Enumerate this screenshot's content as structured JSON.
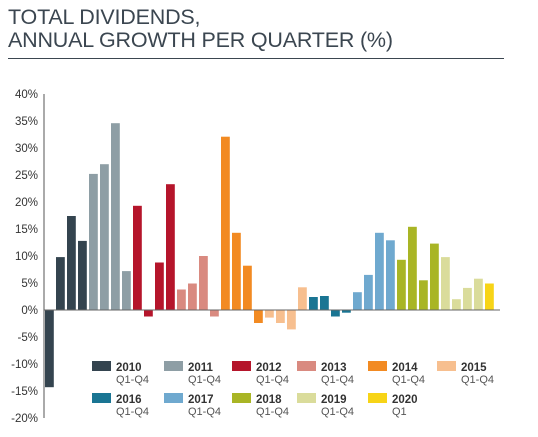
{
  "title_line1": "TOTAL DIVIDENDS,",
  "title_line2": "ANNUAL GROWTH PER QUARTER (%)",
  "chart_data": {
    "type": "bar",
    "ylim": [
      -20,
      40
    ],
    "yticks": [
      "40%",
      "35%",
      "30%",
      "25%",
      "20%",
      "15%",
      "10%",
      "5%",
      "0%",
      "-5%",
      "-10%",
      "-15%",
      "-20%"
    ],
    "grid": false,
    "legend_position": "bottom",
    "series": [
      {
        "name": "2010",
        "sub": "Q1-Q4",
        "color": "#34444f",
        "values": [
          -14.3,
          9.8,
          17.4,
          12.8
        ]
      },
      {
        "name": "2011",
        "sub": "Q1-Q4",
        "color": "#8e9ea5",
        "values": [
          25.2,
          27.0,
          34.6,
          7.2
        ]
      },
      {
        "name": "2012",
        "sub": "Q1-Q4",
        "color": "#b5152b",
        "values": [
          19.3,
          -1.2,
          8.8,
          23.3
        ]
      },
      {
        "name": "2013",
        "sub": "Q1-Q4",
        "color": "#d98a80",
        "values": [
          3.8,
          4.9,
          10.0,
          -1.2
        ]
      },
      {
        "name": "2014",
        "sub": "Q1-Q4",
        "color": "#f28a22",
        "values": [
          32.1,
          14.3,
          8.2,
          -2.4
        ]
      },
      {
        "name": "2015",
        "sub": "Q1-Q4",
        "color": "#f7bf8f",
        "values": [
          -1.4,
          -2.4,
          -3.6,
          4.2
        ]
      },
      {
        "name": "2016",
        "sub": "Q1-Q4",
        "color": "#1a7593",
        "values": [
          2.4,
          2.6,
          -1.2,
          -0.5
        ]
      },
      {
        "name": "2017",
        "sub": "Q1-Q4",
        "color": "#6fa9cf",
        "values": [
          3.3,
          6.5,
          14.3,
          12.9
        ]
      },
      {
        "name": "2018",
        "sub": "Q1-Q4",
        "color": "#a9b525",
        "values": [
          9.3,
          15.4,
          5.5,
          12.3
        ]
      },
      {
        "name": "2019",
        "sub": "Q1-Q4",
        "color": "#dadc9b",
        "values": [
          9.8,
          2.0,
          4.1,
          5.8
        ]
      },
      {
        "name": "2020",
        "sub": "Q1",
        "color": "#f7d417",
        "values": [
          4.9
        ]
      }
    ]
  }
}
